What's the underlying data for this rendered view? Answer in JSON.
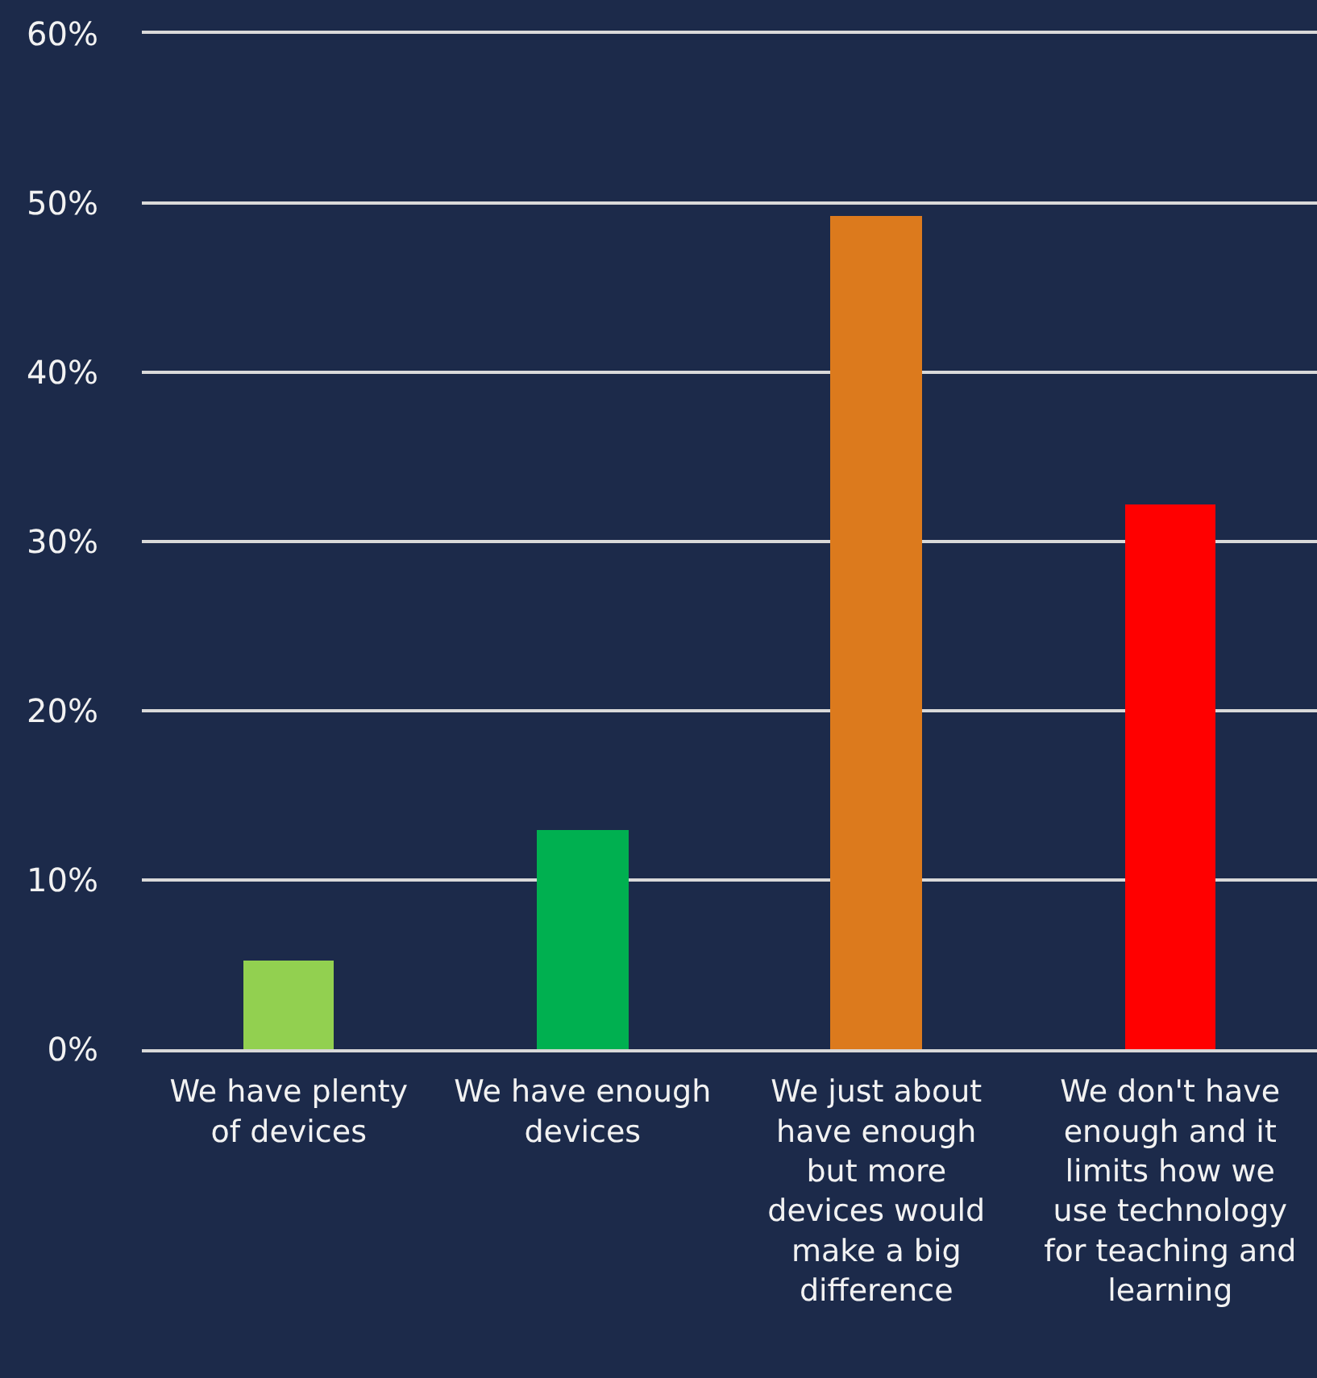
{
  "chart_data": {
    "type": "bar",
    "categories": [
      "We have plenty\nof devices",
      "We have enough\ndevices",
      "We just about\nhave enough\nbut more\ndevices would\nmake a big\ndifference",
      "We don't have\nenough and it\nlimits how we\nuse technology\nfor teaching and\nlearning"
    ],
    "values": [
      5.2,
      13.0,
      49.2,
      32.2
    ],
    "colors": [
      "#92d050",
      "#00b050",
      "#dc7a1d",
      "#ff0000"
    ],
    "ylim": [
      0,
      60
    ],
    "yticks": [
      {
        "value": 0,
        "label": "0%"
      },
      {
        "value": 10,
        "label": "10%"
      },
      {
        "value": 20,
        "label": "20%"
      },
      {
        "value": 30,
        "label": "30%"
      },
      {
        "value": 40,
        "label": "40%"
      },
      {
        "value": 50,
        "label": "50%"
      },
      {
        "value": 60,
        "label": "60%"
      }
    ],
    "grid": "y"
  }
}
